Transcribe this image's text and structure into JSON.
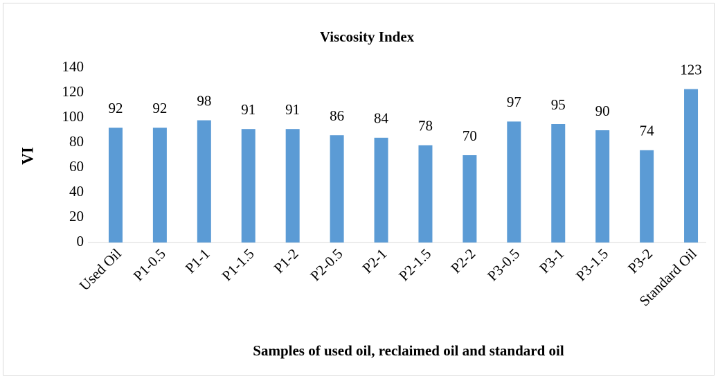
{
  "chart_data": {
    "type": "bar",
    "title": "Viscosity Index",
    "x_label": "Samples of used oil, reclaimed oil and standard oil",
    "y_label": "VI",
    "categories": [
      "Used Oil",
      "P1-0.5",
      "P1-1",
      "P1-1.5",
      "P1-2",
      "P2-0.5",
      "P2-1",
      "P2-1.5",
      "P2-2",
      "P3-0.5",
      "P3-1",
      "P3-1.5",
      "P3-2",
      "Standard Oil"
    ],
    "values": [
      92,
      92,
      98,
      91,
      91,
      86,
      84,
      78,
      70,
      97,
      95,
      90,
      74,
      123
    ],
    "color": "#5b9bd5",
    "ylim": [
      0,
      140
    ],
    "yticks": [
      0,
      20,
      40,
      60,
      80,
      100,
      120,
      140
    ],
    "grid": false
  }
}
